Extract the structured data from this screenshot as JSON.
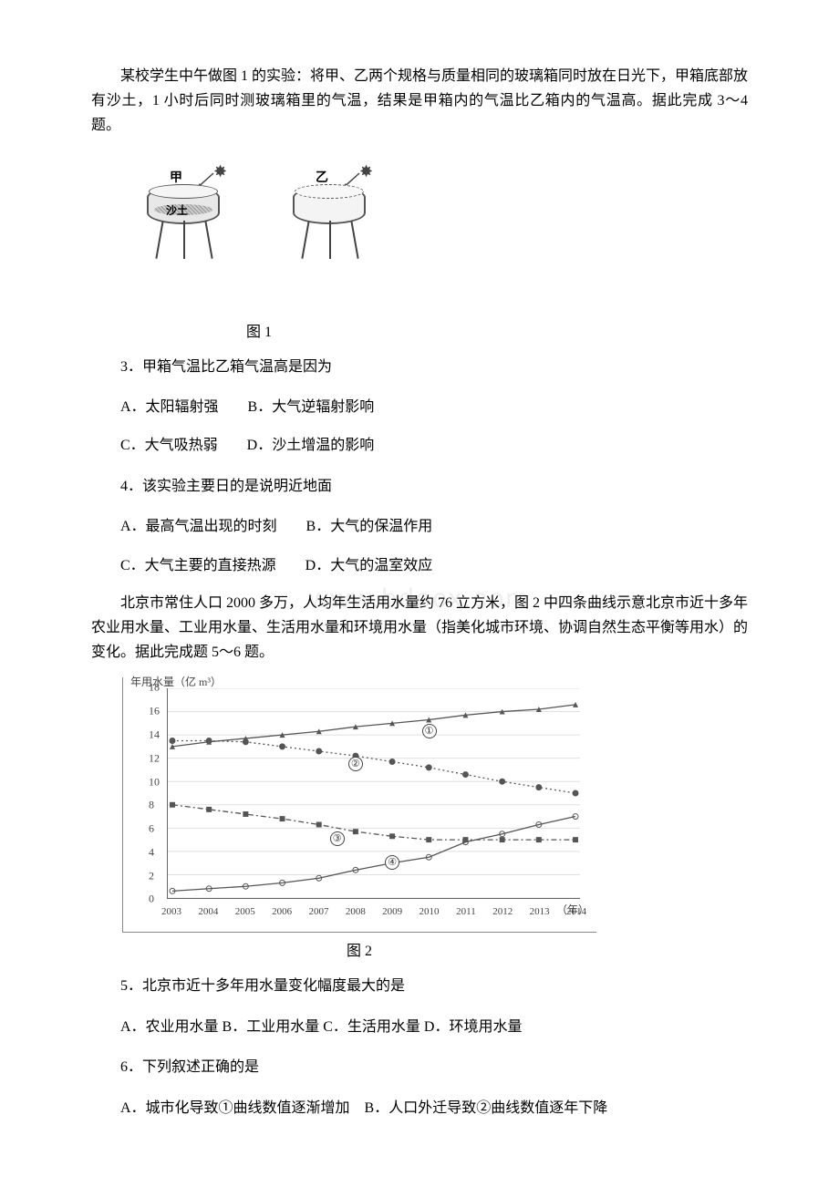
{
  "intro1": "某校学生中午做图 1 的实验：将甲、乙两个规格与质量相同的玻璃箱同时放在日光下，甲箱底部放有沙土，1 小时后同时测玻璃箱里的气温，结果是甲箱内的气温比乙箱内的气温高。据此完成 3～4 题。",
  "figure1": {
    "caption": "图 1",
    "label_jia": "甲",
    "label_yi": "乙",
    "label_sand": "沙土"
  },
  "q3": {
    "stem": "3．甲箱气温比乙箱气温高是因为",
    "row1": "A．太阳辐射强　　B．大气逆辐射影响",
    "row2": "C．大气吸热弱　　D．沙土增温的影响"
  },
  "q4": {
    "stem": "4．该实验主要日的是说明近地面",
    "row1": "A．最高气温出现的时刻　　B．大气的保温作用",
    "row2": "C．大气主要的直接热源　　D．大气的温室效应"
  },
  "intro2": "北京市常住人口 2000 多万，人均年生活用水量约 76 立方米，图 2 中四条曲线示意北京市近十多年农业用水量、工业用水量、生活用水量和环境用水量（指美化城市环境、协调自然生态平衡等用水）的变化。据此完成题 5～6 题。",
  "chart": {
    "caption": "图 2",
    "ytitle": "年用水量（亿 m³）",
    "xunit": "（年）",
    "ylim": [
      0,
      18
    ],
    "ytick_step": 2,
    "xcategories": [
      "2003",
      "2004",
      "2005",
      "2006",
      "2007",
      "2008",
      "2009",
      "2010",
      "2011",
      "2012",
      "2013",
      "2014"
    ],
    "series": [
      {
        "id": "①",
        "values": [
          13.0,
          13.4,
          13.7,
          14.0,
          14.3,
          14.7,
          15.0,
          15.3,
          15.7,
          16.0,
          16.2,
          16.6
        ],
        "style": "solid",
        "marker": "triangle",
        "label_x": 7,
        "label_y": 14.4
      },
      {
        "id": "②",
        "values": [
          13.5,
          13.5,
          13.4,
          13.0,
          12.6,
          12.2,
          11.7,
          11.2,
          10.6,
          10.0,
          9.5,
          9.0
        ],
        "style": "dotted",
        "marker": "dot",
        "label_x": 5,
        "label_y": 11.6
      },
      {
        "id": "③",
        "values": [
          8.0,
          7.6,
          7.2,
          6.8,
          6.3,
          5.7,
          5.3,
          5.0,
          5.0,
          5.0,
          5.0,
          5.0
        ],
        "style": "dashdot",
        "marker": "square",
        "label_x": 4.5,
        "label_y": 5.2
      },
      {
        "id": "④",
        "values": [
          0.6,
          0.8,
          1.0,
          1.3,
          1.7,
          2.4,
          3.0,
          3.5,
          4.8,
          5.5,
          6.3,
          7.0
        ],
        "style": "solid",
        "marker": "circle",
        "label_x": 6,
        "label_y": 3.2
      }
    ],
    "colors": {
      "line": "#555555",
      "grid": "#e0e0e0",
      "text": "#444444",
      "background": "#ffffff"
    }
  },
  "q5": {
    "stem": "5．北京市近十多年用水量变化幅度最大的是",
    "row1": "A．农业用水量  B．工业用水量  C．生活用水量  D．环境用水量"
  },
  "q6": {
    "stem": "6．下列叙述正确的是",
    "row1": "A．城市化导致①曲线数值逐渐增加　B．人口外迁导致②曲线数值逐年下降"
  },
  "watermark": "www.bdocx.com"
}
